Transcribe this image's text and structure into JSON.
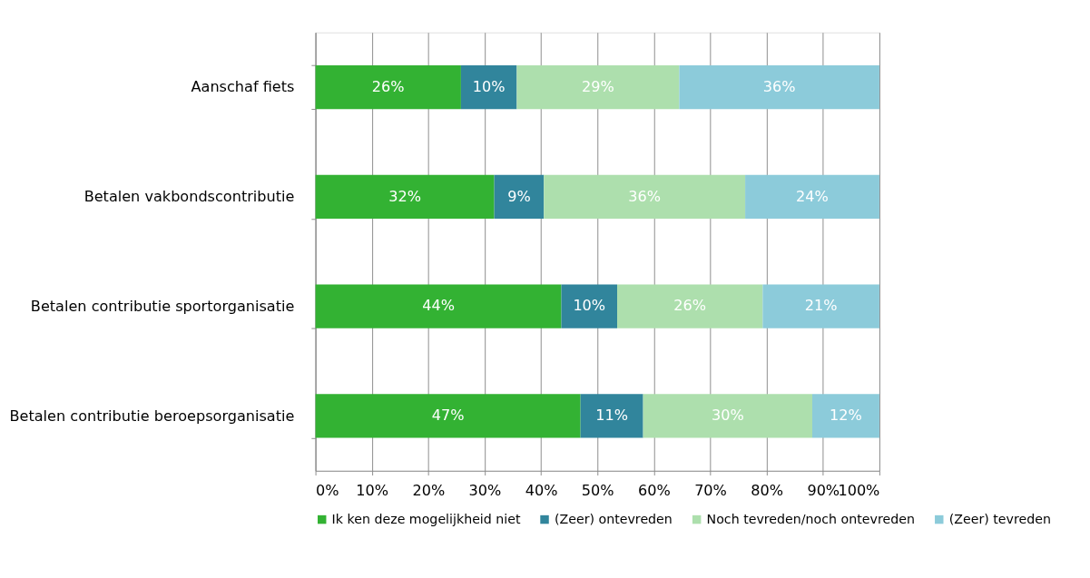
{
  "chart_data": {
    "type": "bar",
    "orientation": "horizontal",
    "stacked": true,
    "categories": [
      "Aanschaf fiets",
      "Betalen vakbondscontributie",
      "Betalen contributie sportorganisatie",
      "Betalen contributie beroepsorganisatie"
    ],
    "series": [
      {
        "name": "Ik ken deze mogelijkheid niet",
        "color": "#33b233",
        "values": [
          25.8,
          31.7,
          43.6,
          47.0
        ],
        "value_labels": [
          "26%",
          "32%",
          "44%",
          "47%"
        ]
      },
      {
        "name": "(Zeer) ontevreden",
        "color": "#31859c",
        "values": [
          9.9,
          8.8,
          9.9,
          11.1
        ],
        "value_labels": [
          "10%",
          "9%",
          "10%",
          "11%"
        ]
      },
      {
        "name": "Noch tevreden/noch ontevreden",
        "color": "#addfad",
        "values": [
          28.8,
          35.7,
          25.8,
          30.0
        ],
        "value_labels": [
          "29%",
          "36%",
          "26%",
          "30%"
        ]
      },
      {
        "name": "(Zeer) tevreden",
        "color": "#8ccbda",
        "values": [
          35.5,
          23.8,
          20.7,
          11.9
        ],
        "value_labels": [
          "36%",
          "24%",
          "21%",
          "12%"
        ]
      }
    ],
    "xlim": [
      0,
      100
    ],
    "xticks": [
      {
        "value": 0,
        "label": "0%"
      },
      {
        "value": 10,
        "label": "10%"
      },
      {
        "value": 20,
        "label": "20%"
      },
      {
        "value": 30,
        "label": "30%"
      },
      {
        "value": 40,
        "label": "40%"
      },
      {
        "value": 50,
        "label": "50%"
      },
      {
        "value": 60,
        "label": "60%"
      },
      {
        "value": 70,
        "label": "70%"
      },
      {
        "value": 80,
        "label": "80%"
      },
      {
        "value": 90,
        "label": "90%"
      },
      {
        "value": 100,
        "label": "100%"
      }
    ],
    "grid": "x",
    "legend": "bottom"
  }
}
